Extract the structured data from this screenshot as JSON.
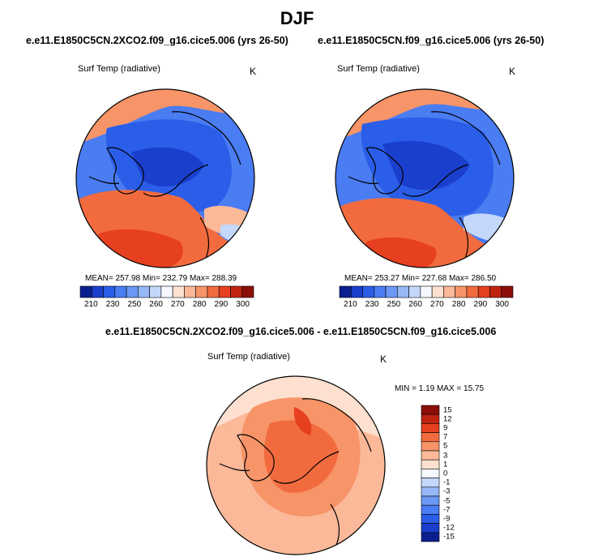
{
  "figure_title": "DJF",
  "panels": [
    {
      "case": "e.e11.E1850C5CN.2XCO2.f09_g16.cice5.006 (yrs 26-50)",
      "variable": "Surf Temp (radiative)",
      "units": "K",
      "stats": "MEAN= 257.98  Min= 232.79  Max= 288.39",
      "mean": 257.98,
      "min": 232.79,
      "max": 288.39
    },
    {
      "case": "e.e11.E1850C5CN.f09_g16.cice5.006 (yrs 26-50)",
      "variable": "Surf Temp (radiative)",
      "units": "K",
      "stats": "MEAN= 253.27  Min= 227.68  Max= 286.50",
      "mean": 253.27,
      "min": 227.68,
      "max": 286.5
    },
    {
      "case": "e.e11.E1850C5CN.2XCO2.f09_g16.cice5.006 - e.e11.E1850C5CN.f09_g16.cice5.006",
      "variable": "Surf Temp (radiative)",
      "units": "K",
      "stats": "MIN =   1.19 MAX =  15.75",
      "min": 1.19,
      "max": 15.75
    }
  ],
  "abs_colorbar": {
    "colors": [
      "#0a1f8f",
      "#1a3fcc",
      "#2a5ee8",
      "#4a7cf2",
      "#6b97f5",
      "#96b8f7",
      "#c4d8fb",
      "#f6f8ff",
      "#fde0cf",
      "#fbb99a",
      "#f79468",
      "#f26b3f",
      "#e64020",
      "#c02410",
      "#8b0e08"
    ],
    "tick_labels": [
      "210",
      "230",
      "250",
      "260",
      "270",
      "280",
      "290",
      "300"
    ]
  },
  "diff_colorbar": {
    "colors": [
      "#0a1f8f",
      "#1a3fcc",
      "#2a5ee8",
      "#4a7cf2",
      "#6b97f5",
      "#96b8f7",
      "#c4d8fb",
      "#f6f8ff",
      "#fde0cf",
      "#fbb99a",
      "#f79468",
      "#f26b3f",
      "#e64020",
      "#c02410",
      "#8b0e08"
    ],
    "tick_labels": [
      "15",
      "12",
      "9",
      "7",
      "5",
      "3",
      "1",
      "0",
      "-1",
      "-3",
      "-5",
      "-7",
      "-9",
      "-12",
      "-15"
    ]
  }
}
